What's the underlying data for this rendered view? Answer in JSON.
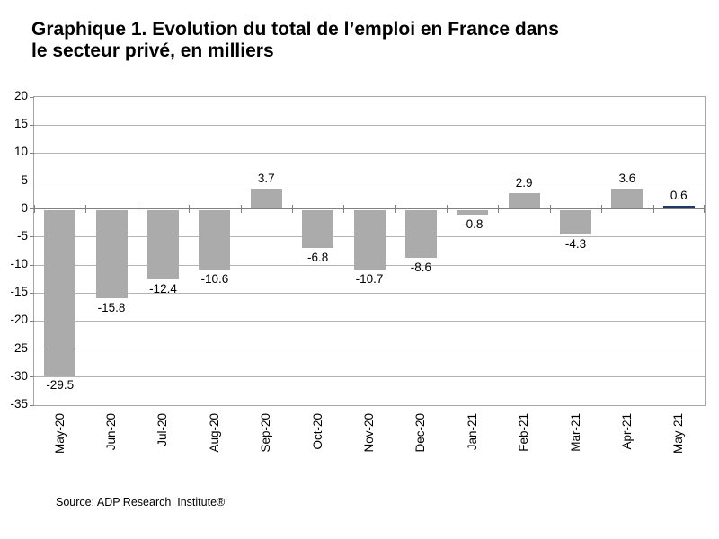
{
  "page": {
    "title_line1": "Graphique 1. Evolution du total de l’emploi en France dans",
    "title_line2": "le secteur privé, en milliers",
    "source": "Source: ADP Research  Institute®"
  },
  "chart_data": {
    "type": "bar",
    "title": "Graphique 1. Evolution du total de l’emploi en France dans le secteur privé, en milliers",
    "categories": [
      "May-20",
      "Jun-20",
      "Jul-20",
      "Aug-20",
      "Sep-20",
      "Oct-20",
      "Nov-20",
      "Dec-20",
      "Jan-21",
      "Feb-21",
      "Mar-21",
      "Apr-21",
      "May-21"
    ],
    "values": [
      -29.5,
      -15.8,
      -12.4,
      -10.6,
      3.7,
      -6.8,
      -10.7,
      -8.6,
      -0.8,
      2.9,
      -4.3,
      3.6,
      0.6
    ],
    "xlabel": "",
    "ylabel": "",
    "ylim": [
      -35,
      20
    ],
    "ytick_step": 5,
    "grid": true,
    "legend": "none",
    "highlight_index": 12,
    "value_label_decimals": 1,
    "colors": {
      "bar_default": "#ABABAB",
      "bar_highlight": "#1F3864",
      "gridline": "#B3B3B3",
      "axis": "#808080",
      "plot_border": "#A6A6A6",
      "text": "#000000"
    },
    "source": "Source: ADP Research  Institute®"
  }
}
